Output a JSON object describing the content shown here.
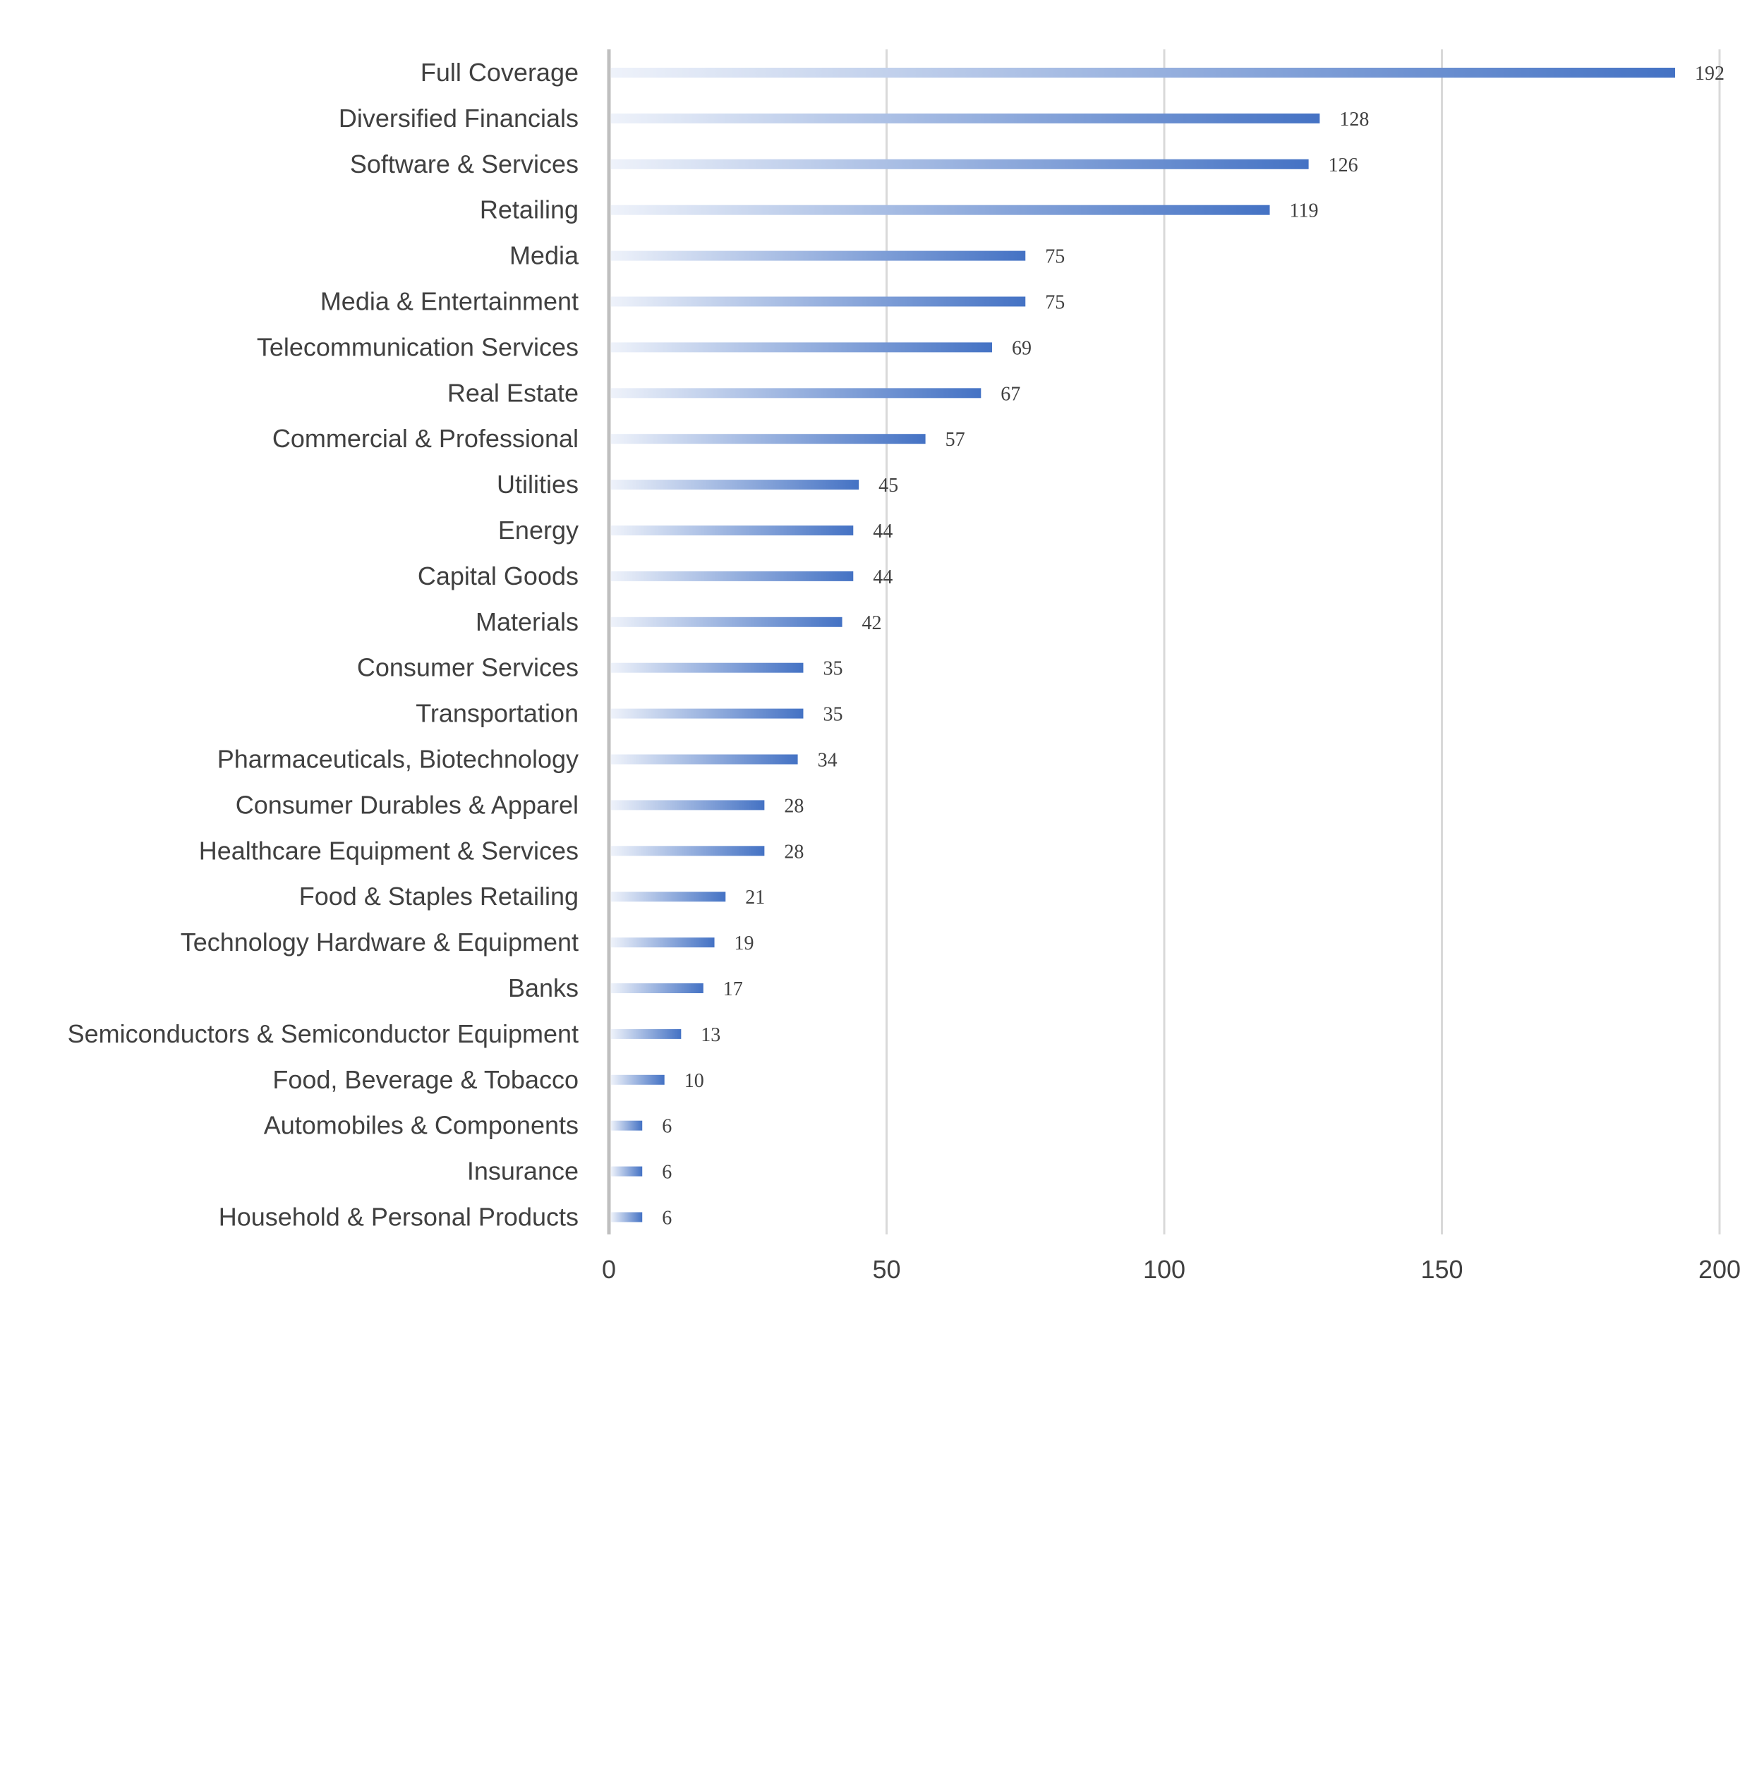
{
  "chart_data": {
    "type": "bar",
    "orientation": "horizontal",
    "categories": [
      "Full Coverage",
      "Diversified Financials",
      "Software & Services",
      "Retailing",
      "Media",
      "Media & Entertainment",
      "Telecommunication Services",
      "Real Estate",
      "Commercial & Professional",
      "Utilities",
      "Energy",
      "Capital Goods",
      "Materials",
      "Consumer Services",
      "Transportation",
      "Pharmaceuticals, Biotechnology",
      "Consumer Durables & Apparel",
      "Healthcare Equipment & Services",
      "Food & Staples Retailing",
      "Technology Hardware & Equipment",
      "Banks",
      "Semiconductors & Semiconductor Equipment",
      "Food, Beverage & Tobacco",
      "Automobiles & Components",
      "Insurance",
      "Household & Personal Products"
    ],
    "values": [
      192,
      128,
      126,
      119,
      75,
      75,
      69,
      67,
      57,
      45,
      44,
      44,
      42,
      35,
      35,
      34,
      28,
      28,
      21,
      19,
      17,
      13,
      10,
      6,
      6,
      6
    ],
    "xlim": [
      0,
      200
    ],
    "xticks": [
      "0",
      "50",
      "100",
      "150",
      "200"
    ],
    "grid": true,
    "data_labels": true,
    "colors": {
      "bar": "#4472c4",
      "bar_light": "#eef2fa",
      "grid": "#d9d9d9",
      "axis": "#bfbfbf",
      "text": "#404040"
    }
  }
}
